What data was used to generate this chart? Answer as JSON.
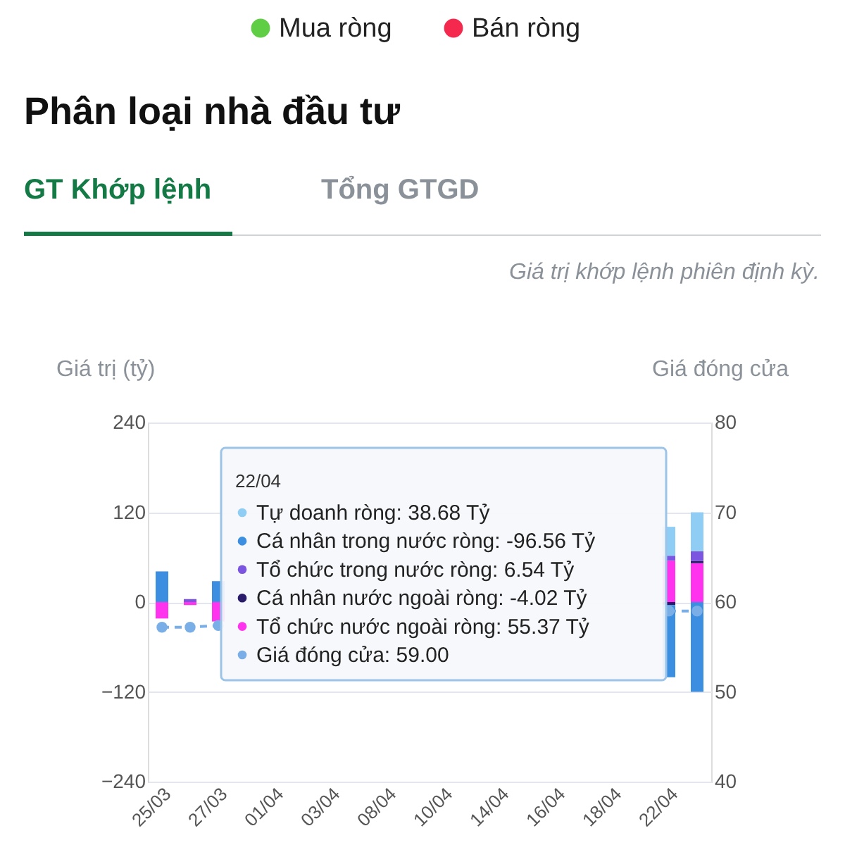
{
  "chart_data": {
    "type": "bar",
    "stacked": true,
    "title": "Phân loại nhà đầu tư",
    "subtitle": "Giá trị khớp lệnh phiên định kỳ.",
    "ylabel": "Giá trị (tỷ)",
    "y2label": "Giá đóng cửa",
    "categories": [
      "25/03",
      null,
      "27/03",
      null,
      "01/04",
      null,
      "03/04",
      null,
      "08/04",
      null,
      "10/04",
      null,
      "14/04",
      null,
      "16/04",
      null,
      "18/04",
      null,
      "22/04",
      null
    ],
    "series": [
      {
        "name": "Tổ chức nước ngoài ròng:",
        "color": "#ff33ee",
        "values": [
          -22,
          -4,
          -26,
          null,
          null,
          null,
          null,
          null,
          null,
          null,
          null,
          null,
          null,
          null,
          null,
          null,
          null,
          null,
          55.37,
          52
        ]
      },
      {
        "name": "Cá nhân nước ngoài ròng:",
        "color": "#2a1b6b",
        "values": [
          null,
          null,
          null,
          null,
          null,
          null,
          null,
          null,
          null,
          null,
          null,
          null,
          null,
          null,
          null,
          null,
          null,
          null,
          -4.02,
          3
        ]
      },
      {
        "name": "Tổ chức trong nước ròng:",
        "color": "#7b55e0",
        "values": [
          null,
          4,
          null,
          null,
          null,
          null,
          null,
          null,
          null,
          null,
          null,
          null,
          null,
          null,
          null,
          null,
          null,
          null,
          6.54,
          13
        ]
      },
      {
        "name": "Cá nhân trong nước ròng:",
        "color": "#3b8ee0",
        "values": [
          41,
          null,
          28,
          null,
          null,
          null,
          null,
          null,
          null,
          null,
          null,
          null,
          null,
          null,
          null,
          null,
          null,
          null,
          -96.56,
          -120
        ]
      },
      {
        "name": "Tự doanh ròng:",
        "color": "#8fcdf5",
        "values": [
          null,
          null,
          null,
          null,
          null,
          null,
          null,
          null,
          null,
          null,
          null,
          null,
          null,
          null,
          null,
          null,
          null,
          null,
          38.68,
          52
        ]
      },
      {
        "name": "Giá đóng cửa:",
        "color": "#7aaee6",
        "type": "line",
        "axis": "y2",
        "line_style": "dashed",
        "marker": "circle",
        "values": [
          57.2,
          57.2,
          57.4,
          null,
          null,
          null,
          null,
          null,
          null,
          null,
          null,
          null,
          null,
          null,
          null,
          null,
          null,
          null,
          59.0,
          59.0
        ]
      }
    ],
    "ylim": [
      -240,
      240
    ],
    "yticks": [
      -240,
      -120,
      0,
      120,
      240
    ],
    "y2lim": [
      40,
      80
    ],
    "y2ticks": [
      40,
      50,
      60,
      70,
      80
    ],
    "grid": "y",
    "annotations": [
      "Mua ròng",
      "Bán ròng",
      "GT Khớp lệnh",
      "Tổng GTGD",
      "22/04",
      "38.68 Tỷ",
      "-96.56 Tỷ",
      "6.54 Tỷ",
      "-4.02 Tỷ",
      "55.37 Tỷ",
      "59.00"
    ]
  }
}
